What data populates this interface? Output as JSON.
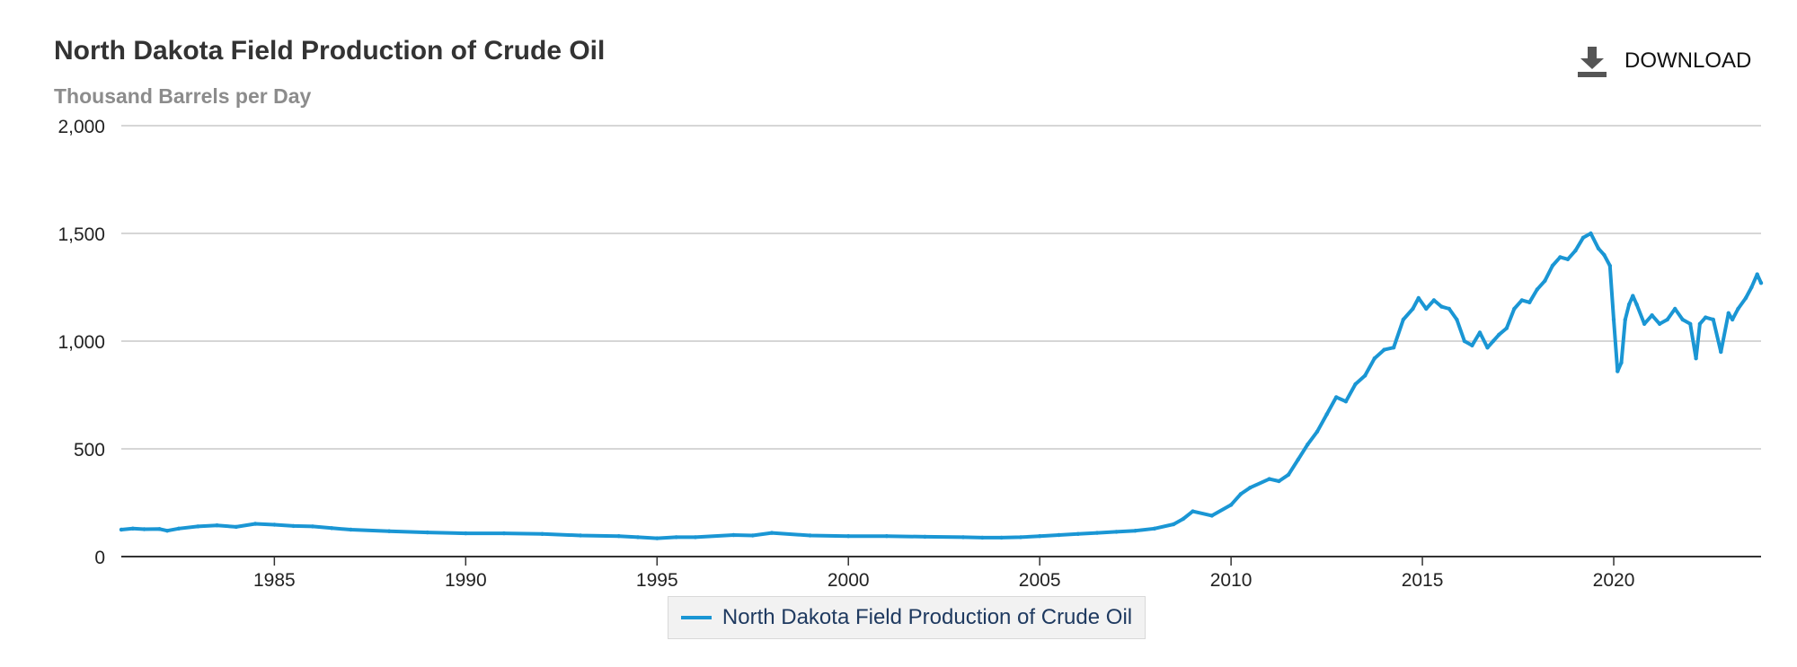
{
  "header": {
    "title": "North Dakota Field Production of Crude Oil",
    "subtitle": "Thousand Barrels per Day",
    "download_label": "DOWNLOAD",
    "download_icon": "download-icon"
  },
  "colors": {
    "series": "#1a96d4",
    "grid": "#c8c8c8",
    "axis": "#333333",
    "title": "#333333",
    "subtitle": "#8c8c8c",
    "legend_bg": "#f2f2f2",
    "legend_text": "#1f3a60"
  },
  "legend": {
    "label": "North Dakota Field Production of Crude Oil"
  },
  "chart_data": {
    "type": "line",
    "title": "North Dakota Field Production of Crude Oil",
    "subtitle": "Thousand Barrels per Day",
    "xlabel": "",
    "ylabel": "",
    "xlim": [
      1981.0,
      2023.85
    ],
    "ylim": [
      0,
      2000
    ],
    "y_ticks": [
      0,
      500,
      1000,
      1500,
      2000
    ],
    "y_tick_labels": [
      "0",
      "500",
      "1,000",
      "1,500",
      "2,000"
    ],
    "x_ticks": [
      1985,
      1990,
      1995,
      2000,
      2005,
      2010,
      2015,
      2020
    ],
    "x_tick_labels": [
      "1985",
      "1990",
      "1995",
      "2000",
      "2005",
      "2010",
      "2015",
      "2020"
    ],
    "grid": true,
    "legend_position": "bottom-center",
    "series": [
      {
        "name": "North Dakota Field Production of Crude Oil",
        "x": [
          1981.0,
          1981.3,
          1981.6,
          1982.0,
          1982.2,
          1982.5,
          1983.0,
          1983.5,
          1984.0,
          1984.5,
          1985.0,
          1985.5,
          1986.0,
          1986.5,
          1987.0,
          1988.0,
          1989.0,
          1990.0,
          1991.0,
          1992.0,
          1993.0,
          1994.0,
          1994.5,
          1995.0,
          1995.5,
          1996.0,
          1997.0,
          1997.5,
          1998.0,
          1999.0,
          2000.0,
          2001.0,
          2002.0,
          2003.0,
          2003.5,
          2004.0,
          2004.5,
          2005.0,
          2005.5,
          2006.0,
          2006.5,
          2007.0,
          2007.5,
          2008.0,
          2008.5,
          2008.75,
          2009.0,
          2009.5,
          2010.0,
          2010.25,
          2010.5,
          2011.0,
          2011.25,
          2011.5,
          2011.75,
          2012.0,
          2012.25,
          2012.5,
          2012.75,
          2013.0,
          2013.25,
          2013.5,
          2013.75,
          2014.0,
          2014.25,
          2014.5,
          2014.75,
          2014.9,
          2015.1,
          2015.3,
          2015.5,
          2015.7,
          2015.9,
          2016.1,
          2016.3,
          2016.5,
          2016.7,
          2016.85,
          2017.0,
          2017.2,
          2017.4,
          2017.6,
          2017.8,
          2018.0,
          2018.2,
          2018.4,
          2018.6,
          2018.8,
          2019.0,
          2019.2,
          2019.4,
          2019.6,
          2019.75,
          2019.9,
          2020.0,
          2020.1,
          2020.2,
          2020.3,
          2020.4,
          2020.5,
          2020.6,
          2020.8,
          2021.0,
          2021.2,
          2021.4,
          2021.6,
          2021.8,
          2022.0,
          2022.15,
          2022.25,
          2022.4,
          2022.6,
          2022.8,
          2023.0,
          2023.1,
          2023.25,
          2023.45,
          2023.6,
          2023.75,
          2023.85
        ],
        "values": [
          125,
          130,
          127,
          128,
          120,
          130,
          140,
          145,
          138,
          152,
          148,
          142,
          140,
          132,
          125,
          118,
          112,
          108,
          108,
          105,
          98,
          95,
          90,
          85,
          90,
          90,
          100,
          98,
          110,
          98,
          95,
          95,
          92,
          90,
          88,
          88,
          90,
          95,
          100,
          105,
          110,
          115,
          120,
          130,
          150,
          175,
          210,
          190,
          240,
          290,
          320,
          360,
          350,
          380,
          450,
          520,
          580,
          660,
          740,
          720,
          800,
          840,
          920,
          960,
          970,
          1100,
          1150,
          1200,
          1150,
          1190,
          1160,
          1150,
          1100,
          1000,
          980,
          1040,
          970,
          1000,
          1030,
          1060,
          1150,
          1190,
          1180,
          1240,
          1280,
          1350,
          1390,
          1380,
          1420,
          1480,
          1500,
          1430,
          1400,
          1350,
          1100,
          860,
          900,
          1100,
          1170,
          1210,
          1170,
          1080,
          1120,
          1080,
          1100,
          1150,
          1100,
          1080,
          920,
          1080,
          1110,
          1100,
          950,
          1130,
          1100,
          1150,
          1200,
          1250,
          1310,
          1270
        ]
      }
    ]
  }
}
